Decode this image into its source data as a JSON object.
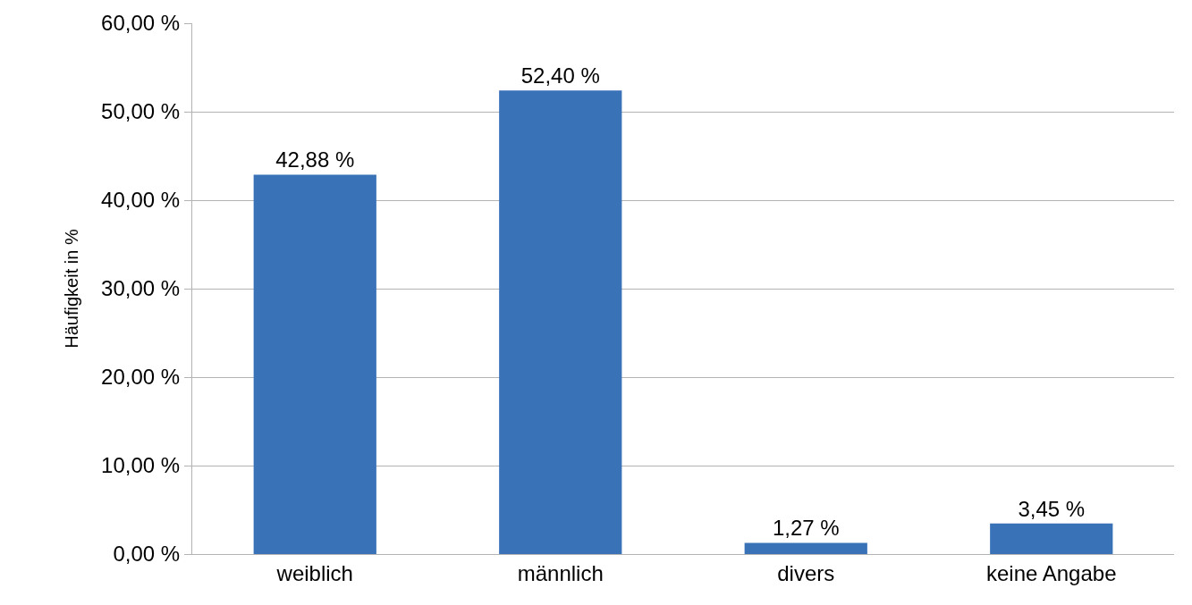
{
  "chart_data": {
    "type": "bar",
    "ylabel": "Häufigkeit in %",
    "categories": [
      "weiblich",
      "männlich",
      "divers",
      "keine Angabe"
    ],
    "values": [
      42.88,
      52.4,
      1.27,
      3.45
    ],
    "value_labels": [
      "42,88 %",
      "52,40 %",
      "1,27 %",
      "3,45 %"
    ],
    "color": "#3a72b8",
    "ylim": [
      0,
      60
    ],
    "yticks": [
      {
        "value": 0,
        "label": "0,00 %"
      },
      {
        "value": 10,
        "label": "10,00 %"
      },
      {
        "value": 20,
        "label": "20,00 %"
      },
      {
        "value": 30,
        "label": "30,00 %"
      },
      {
        "value": 40,
        "label": "40,00 %"
      },
      {
        "value": 50,
        "label": "50,00 %"
      },
      {
        "value": 60,
        "label": "60,00 %"
      }
    ],
    "grid": "y"
  }
}
